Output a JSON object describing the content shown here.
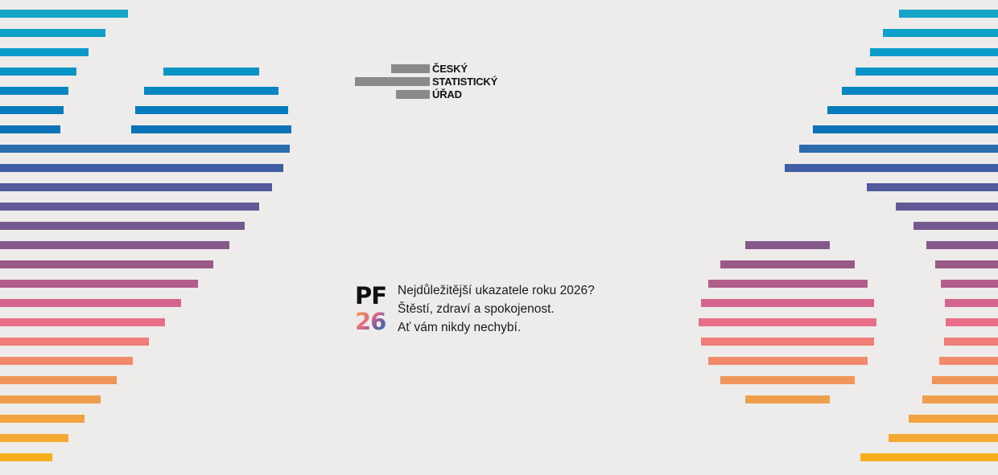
{
  "logo": {
    "line1": "ČESKÝ",
    "line2": "STATISTICKÝ",
    "line3": "ÚŘAD"
  },
  "greeting": {
    "pf": "PF",
    "year": "26",
    "lines": [
      "Nejdůležitější ukazatele roku 2026?",
      "Štěstí, zdraví a spokojenost.",
      "Ať vám nikdy nechybí."
    ]
  },
  "colors": {
    "background": "#eeecea",
    "logo_bars": "#8a8a8a",
    "stripe_gradient": [
      "#13a4c6",
      "#0fa0c8",
      "#0b9bc9",
      "#0893c8",
      "#0686c2",
      "#067cbc",
      "#0a73b6",
      "#2a6aae",
      "#405fa4",
      "#52599c",
      "#635895",
      "#75588f",
      "#86588a",
      "#995a88",
      "#b25e8a",
      "#d4648e",
      "#e86e8a",
      "#ef7d78",
      "#f08a6a",
      "#f0955a",
      "#ee9e4c",
      "#f2a23f",
      "#f4aa32",
      "#f5b020"
    ]
  }
}
